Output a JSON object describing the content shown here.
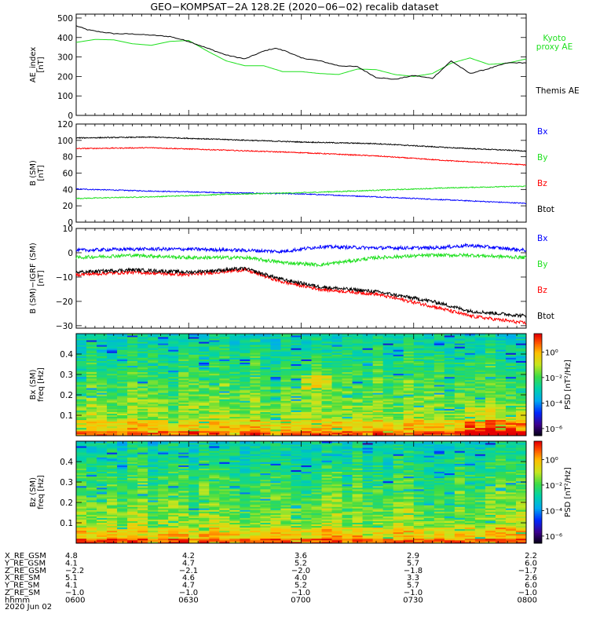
{
  "title": "GEO−KOMPSAT−2A 128.2E (2020−06−02) recalib dataset",
  "colors": {
    "black": "#000000",
    "red": "#ff0000",
    "green": "#1ee01e",
    "blue": "#0000ff"
  },
  "chart_data": [
    {
      "type": "line",
      "ylabel": "AE_index\n[nT]",
      "ylim": [
        0,
        520
      ],
      "yticks": [
        0,
        100,
        200,
        300,
        400,
        500
      ],
      "series": [
        {
          "name": "Kyoto\nproxy AE",
          "color": "#1ee01e",
          "x": [
            0,
            5,
            10,
            15,
            20,
            25,
            30,
            35,
            40,
            45,
            50,
            55,
            60,
            65,
            70,
            75,
            80,
            85,
            90,
            95,
            100,
            105,
            110,
            115,
            120
          ],
          "values": [
            375,
            390,
            388,
            368,
            360,
            380,
            385,
            330,
            280,
            255,
            255,
            225,
            225,
            215,
            210,
            238,
            235,
            210,
            200,
            215,
            268,
            295,
            262,
            268,
            290
          ]
        },
        {
          "name": "Themis AE",
          "x": [
            0,
            3,
            6,
            10,
            15,
            20,
            25,
            30,
            35,
            40,
            45,
            50,
            53,
            56,
            60,
            65,
            70,
            75,
            80,
            85,
            90,
            95,
            100,
            105,
            110,
            115,
            120
          ],
          "values": [
            460,
            440,
            430,
            420,
            418,
            412,
            405,
            380,
            345,
            310,
            290,
            330,
            345,
            330,
            295,
            280,
            255,
            250,
            195,
            185,
            205,
            190,
            280,
            215,
            240,
            270,
            270
          ],
          "color": "#000000"
        }
      ]
    },
    {
      "type": "line",
      "ylabel": "B (SM)\n[nT]",
      "ylim": [
        0,
        120
      ],
      "yticks": [
        0,
        20,
        40,
        60,
        80,
        100,
        120
      ],
      "series": [
        {
          "name": "Bx",
          "color": "#0000ff",
          "x": [
            0,
            20,
            40,
            60,
            80,
            100,
            120
          ],
          "values": [
            40.5,
            38,
            36,
            34.5,
            31,
            27,
            23
          ]
        },
        {
          "name": "By",
          "color": "#1ee01e",
          "x": [
            0,
            20,
            40,
            60,
            80,
            100,
            120
          ],
          "values": [
            29,
            31,
            34,
            36,
            39,
            42,
            44
          ]
        },
        {
          "name": "Bz",
          "color": "#ff0000",
          "x": [
            0,
            20,
            40,
            60,
            80,
            100,
            120
          ],
          "values": [
            90,
            91,
            88,
            85,
            81,
            75,
            70
          ]
        },
        {
          "name": "Btot",
          "color": "#000000",
          "x": [
            0,
            20,
            40,
            60,
            80,
            100,
            120
          ],
          "values": [
            103,
            104,
            101,
            98,
            96,
            91,
            87
          ]
        }
      ]
    },
    {
      "type": "line",
      "ylabel": "B (SM)−IGRF (SM)\n[nT]",
      "ylim": [
        -31,
        10
      ],
      "yticks": [
        -30,
        -20,
        -10,
        0,
        10
      ],
      "series": [
        {
          "name": "Bx",
          "color": "#0000ff",
          "x": [
            0,
            15,
            30,
            45,
            55,
            65,
            80,
            95,
            105,
            120
          ],
          "values": [
            1,
            1.5,
            1.5,
            1,
            0.5,
            2.5,
            2,
            2,
            3,
            1
          ]
        },
        {
          "name": "By",
          "color": "#1ee01e",
          "x": [
            0,
            15,
            30,
            45,
            55,
            65,
            80,
            95,
            105,
            120
          ],
          "values": [
            -2,
            -1,
            -2,
            -2,
            -4,
            -5,
            -2,
            -1,
            -1,
            -2
          ]
        },
        {
          "name": "Bz",
          "color": "#ff0000",
          "x": [
            0,
            15,
            30,
            45,
            55,
            65,
            80,
            95,
            105,
            120
          ],
          "values": [
            -9,
            -8,
            -9,
            -7,
            -12,
            -15,
            -17,
            -22,
            -26,
            -29
          ]
        },
        {
          "name": "Btot",
          "color": "#000000",
          "x": [
            0,
            15,
            30,
            45,
            55,
            65,
            80,
            95,
            105,
            120
          ],
          "values": [
            -8,
            -7,
            -8,
            -6.5,
            -11,
            -14,
            -16,
            -20,
            -24,
            -26
          ]
        }
      ]
    },
    {
      "type": "heatmap",
      "ylabel": "Bx (SM)\nfreq  [Hz]",
      "ylim": [
        0,
        0.5
      ],
      "yticks": [
        0.1,
        0.2,
        0.3,
        0.4
      ],
      "colorbar_label": "PSD [nT²/Hz]",
      "colorbar_ticks": [
        "10⁰",
        "10⁻²",
        "10⁻⁴",
        "10⁻⁶"
      ]
    },
    {
      "type": "heatmap",
      "ylabel": "Bz (SM)\nfreq  [Hz]",
      "ylim": [
        0,
        0.5
      ],
      "yticks": [
        0.1,
        0.2,
        0.3,
        0.4
      ],
      "colorbar_label": "PSD [nT²/Hz]",
      "colorbar_ticks": [
        "10⁰",
        "10⁻²",
        "10⁻⁴",
        "10⁻⁶"
      ]
    }
  ],
  "ephemeris": {
    "labels": [
      "X_RE_GSM",
      "Y_RE_GSM",
      "Z_RE_GSM",
      "X_RE_SM",
      "Y_RE_SM",
      "Z_RE_SM",
      "hhmm"
    ],
    "columns": [
      [
        "4.8",
        "4.1",
        "−2.2",
        "5.1",
        "4.1",
        "−1.0",
        "0600"
      ],
      [
        "4.2",
        "4.7",
        "−2.1",
        "4.6",
        "4.7",
        "−1.0",
        "0630"
      ],
      [
        "3.6",
        "5.2",
        "−2.0",
        "4.0",
        "5.2",
        "−1.0",
        "0700"
      ],
      [
        "2.9",
        "5.7",
        "−1.8",
        "3.3",
        "5.7",
        "−1.0",
        "0730"
      ],
      [
        "2.2",
        "6.0",
        "−1.7",
        "2.6",
        "6.0",
        "−1.0",
        "0800"
      ]
    ],
    "date": "2020 Jun 02"
  }
}
